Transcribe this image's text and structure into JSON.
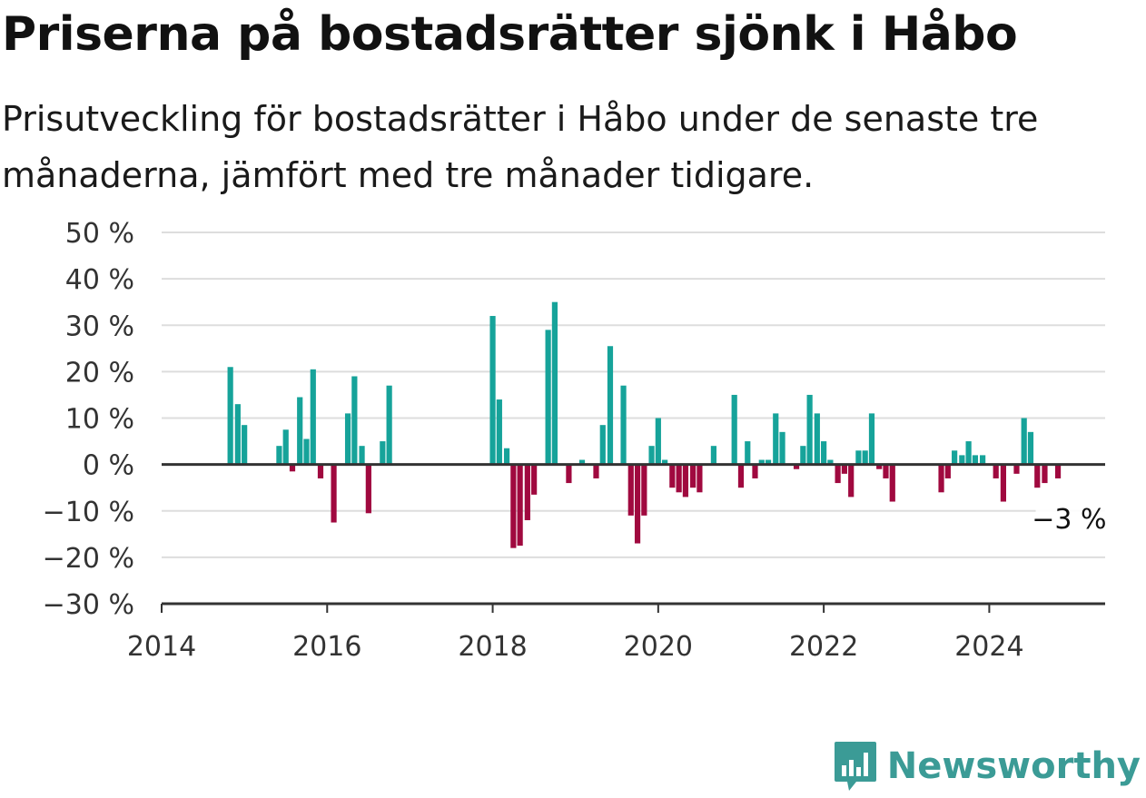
{
  "chart_data": {
    "type": "bar",
    "title": "Priserna på bostadsrätter sjönk i Håbo",
    "subtitle": "Prisutveckling för bostadsrätter i Håbo under de senaste tre månaderna, jämfört med tre månader tidigare.",
    "ylim": [
      -30,
      50
    ],
    "yticks": [
      50,
      40,
      30,
      20,
      10,
      0,
      -10,
      -20,
      -30
    ],
    "ytick_labels": [
      "50 %",
      "40 %",
      "30 %",
      "20 %",
      "10 %",
      "0 %",
      "−10 %",
      "−20 %",
      "−30 %"
    ],
    "xlim": [
      2014,
      2025.4
    ],
    "xticks": [
      2014,
      2016,
      2018,
      2020,
      2022,
      2024
    ],
    "xtick_labels": [
      "2014",
      "2016",
      "2018",
      "2020",
      "2022",
      "2024"
    ],
    "grid": true,
    "colors": {
      "positive": "#16a39a",
      "negative": "#a0093f",
      "axis": "#333333",
      "grid": "#dddddd"
    },
    "annotation": {
      "text": "−3 %",
      "x": 2025.0,
      "y": -3
    },
    "series": [
      {
        "x": [
          2014.83,
          2014.92,
          2015.0,
          2015.42,
          2015.5,
          2015.58,
          2015.67,
          2015.75,
          2015.83,
          2015.92,
          2016.08,
          2016.25,
          2016.33,
          2016.42,
          2016.5,
          2016.67,
          2016.75,
          2018.0,
          2018.08,
          2018.17,
          2018.25,
          2018.33,
          2018.42,
          2018.5,
          2018.67,
          2018.75,
          2018.92,
          2019.08,
          2019.25,
          2019.33,
          2019.42,
          2019.58,
          2019.67,
          2019.75,
          2019.83,
          2019.92,
          2020.0,
          2020.08,
          2020.17,
          2020.25,
          2020.33,
          2020.42,
          2020.5,
          2020.67,
          2020.92,
          2021.0,
          2021.08,
          2021.17,
          2021.25,
          2021.33,
          2021.42,
          2021.5,
          2021.67,
          2021.75,
          2021.83,
          2021.92,
          2022.0,
          2022.08,
          2022.17,
          2022.25,
          2022.33,
          2022.42,
          2022.5,
          2022.58,
          2022.67,
          2022.75,
          2022.83,
          2023.42,
          2023.5,
          2023.58,
          2023.67,
          2023.75,
          2023.83,
          2023.92,
          2024.08,
          2024.17,
          2024.33,
          2024.42,
          2024.5,
          2024.58,
          2024.67,
          2024.83
        ],
        "values": [
          21,
          13,
          8.5,
          4,
          7.5,
          -1.5,
          14.5,
          5.5,
          20.5,
          -3,
          -12.5,
          11,
          19,
          4,
          -10.5,
          5,
          17,
          32,
          14,
          3.5,
          -18,
          -17.5,
          -12,
          -6.5,
          29,
          35,
          -4,
          1,
          -3,
          8.5,
          25.5,
          17,
          -11,
          -17,
          -11,
          4,
          10,
          1,
          -5,
          -6,
          -7,
          -5,
          -6,
          4,
          15,
          -5,
          5,
          -3,
          1,
          1,
          11,
          7,
          -1,
          4,
          15,
          11,
          5,
          1,
          -4,
          -2,
          -7,
          3,
          3,
          11,
          -1,
          -3,
          -8,
          -6,
          -3,
          3,
          2,
          5,
          2,
          2,
          -3,
          -8,
          -2,
          10,
          7,
          -5,
          -4,
          -3
        ]
      }
    ]
  },
  "brand": {
    "name": "Newsworthy",
    "icon": "newsworthy-logo-icon"
  }
}
